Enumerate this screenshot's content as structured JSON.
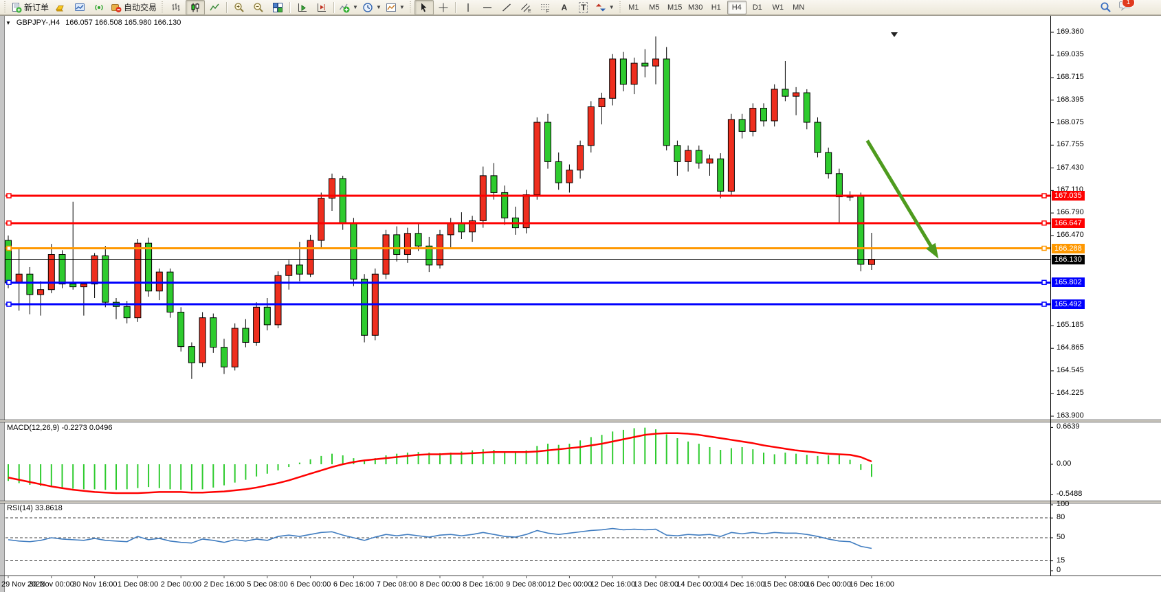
{
  "toolbar": {
    "new_order_label": "新订单",
    "autotrade_label": "自动交易",
    "timeframes": [
      "M1",
      "M5",
      "M15",
      "M30",
      "H1",
      "H4",
      "D1",
      "W1",
      "MN"
    ],
    "active_timeframe": "H4",
    "notification_count": "1",
    "glyphs": {
      "text": "A",
      "text_label": "T",
      "channel_sub": "E",
      "fibo_sub": "F"
    }
  },
  "chart": {
    "title_symbol": "GBPJPY-,H4",
    "title_ohlc": "166.057 166.508 165.980 166.130",
    "price_axis": [
      {
        "label": "169.360",
        "value": 169.36
      },
      {
        "label": "169.035",
        "value": 169.035
      },
      {
        "label": "168.715",
        "value": 168.715
      },
      {
        "label": "168.395",
        "value": 168.395
      },
      {
        "label": "168.075",
        "value": 168.075
      },
      {
        "label": "167.755",
        "value": 167.755
      },
      {
        "label": "167.430",
        "value": 167.43
      },
      {
        "label": "167.110",
        "value": 167.11
      },
      {
        "label": "166.790",
        "value": 166.79
      },
      {
        "label": "166.470",
        "value": 166.47
      },
      {
        "label": "165.185",
        "value": 165.185
      },
      {
        "label": "164.865",
        "value": 164.865
      },
      {
        "label": "164.545",
        "value": 164.545
      },
      {
        "label": "164.225",
        "value": 164.225
      },
      {
        "label": "163.900",
        "value": 163.9
      }
    ]
  },
  "macd": {
    "label": "MACD(12,26,9) -0.2273 0.0496",
    "axis": [
      {
        "label": "0.6639",
        "value": 0.6639
      },
      {
        "label": "0.00",
        "value": 0.0
      },
      {
        "label": "-0.5488",
        "value": -0.5488
      }
    ]
  },
  "rsi": {
    "label": "RSI(14) 33.8618",
    "axis": [
      {
        "label": "100",
        "value": 100
      },
      {
        "label": "80",
        "value": 80
      },
      {
        "label": "50",
        "value": 50
      },
      {
        "label": "15",
        "value": 15
      },
      {
        "label": "0",
        "value": 0
      }
    ]
  },
  "chart_data": {
    "type": "candlestick",
    "symbol": "GBPJPY-",
    "timeframe": "H4",
    "last_ohlc": {
      "open": 166.057,
      "high": 166.508,
      "low": 165.98,
      "close": 166.13
    },
    "price_range": [
      163.9,
      169.36
    ],
    "up_color": "#ee2e1e",
    "down_color": "#2ecb2e",
    "candles": [
      [
        166.4,
        166.47,
        165.72,
        165.8
      ],
      [
        165.8,
        166.28,
        165.4,
        165.92
      ],
      [
        165.92,
        166.02,
        165.35,
        165.63
      ],
      [
        165.63,
        165.82,
        165.33,
        165.7
      ],
      [
        165.7,
        166.35,
        165.65,
        166.2
      ],
      [
        166.2,
        166.26,
        165.72,
        165.78
      ],
      [
        165.78,
        166.95,
        165.7,
        165.74
      ],
      [
        165.74,
        165.8,
        165.33,
        165.78
      ],
      [
        165.78,
        166.22,
        165.58,
        166.18
      ],
      [
        166.18,
        166.32,
        165.45,
        165.52
      ],
      [
        165.52,
        165.58,
        165.28,
        165.46
      ],
      [
        165.46,
        165.54,
        165.22,
        165.3
      ],
      [
        165.3,
        166.42,
        165.24,
        166.36
      ],
      [
        166.36,
        166.44,
        165.6,
        165.68
      ],
      [
        165.68,
        166.0,
        165.55,
        165.95
      ],
      [
        165.95,
        166.0,
        165.3,
        165.38
      ],
      [
        165.38,
        165.45,
        164.82,
        164.89
      ],
      [
        164.89,
        164.95,
        164.43,
        164.66
      ],
      [
        164.66,
        165.38,
        164.6,
        165.3
      ],
      [
        165.3,
        165.36,
        164.8,
        164.88
      ],
      [
        164.88,
        165.0,
        164.5,
        164.6
      ],
      [
        164.6,
        165.22,
        164.55,
        165.15
      ],
      [
        165.15,
        165.28,
        164.88,
        164.95
      ],
      [
        164.95,
        165.52,
        164.9,
        165.45
      ],
      [
        165.45,
        165.58,
        165.12,
        165.2
      ],
      [
        165.2,
        165.96,
        165.15,
        165.9
      ],
      [
        165.9,
        166.12,
        165.7,
        166.05
      ],
      [
        166.05,
        166.38,
        165.82,
        165.92
      ],
      [
        165.92,
        166.48,
        165.88,
        166.4
      ],
      [
        166.4,
        167.08,
        166.3,
        167.0
      ],
      [
        167.0,
        167.35,
        166.82,
        167.28
      ],
      [
        167.28,
        167.32,
        166.55,
        166.65
      ],
      [
        166.65,
        166.72,
        165.75,
        165.85
      ],
      [
        165.85,
        165.92,
        164.95,
        165.05
      ],
      [
        165.05,
        166.0,
        164.98,
        165.92
      ],
      [
        165.92,
        166.55,
        165.85,
        166.48
      ],
      [
        166.48,
        166.6,
        166.1,
        166.2
      ],
      [
        166.2,
        166.58,
        166.08,
        166.5
      ],
      [
        166.5,
        166.65,
        166.25,
        166.32
      ],
      [
        166.32,
        166.45,
        165.95,
        166.05
      ],
      [
        166.05,
        166.55,
        166.0,
        166.48
      ],
      [
        166.48,
        166.72,
        166.3,
        166.65
      ],
      [
        166.65,
        166.8,
        166.42,
        166.52
      ],
      [
        166.52,
        166.75,
        166.38,
        166.68
      ],
      [
        166.68,
        167.45,
        166.58,
        167.32
      ],
      [
        167.32,
        167.5,
        166.98,
        167.08
      ],
      [
        167.08,
        167.18,
        166.62,
        166.72
      ],
      [
        166.72,
        166.88,
        166.48,
        166.58
      ],
      [
        166.58,
        167.12,
        166.5,
        167.05
      ],
      [
        167.05,
        168.15,
        166.98,
        168.08
      ],
      [
        168.08,
        168.2,
        167.42,
        167.52
      ],
      [
        167.52,
        167.65,
        167.12,
        167.22
      ],
      [
        167.22,
        167.48,
        167.08,
        167.4
      ],
      [
        167.4,
        167.82,
        167.28,
        167.75
      ],
      [
        167.75,
        168.38,
        167.65,
        168.3
      ],
      [
        168.3,
        168.5,
        168.05,
        168.42
      ],
      [
        168.42,
        169.05,
        168.32,
        168.98
      ],
      [
        168.98,
        169.08,
        168.52,
        168.62
      ],
      [
        168.62,
        169.0,
        168.48,
        168.92
      ],
      [
        168.92,
        169.12,
        168.72,
        168.88
      ],
      [
        168.88,
        169.3,
        168.62,
        168.98
      ],
      [
        168.98,
        169.15,
        167.68,
        167.75
      ],
      [
        167.75,
        167.82,
        167.32,
        167.52
      ],
      [
        167.52,
        167.75,
        167.38,
        167.68
      ],
      [
        167.68,
        167.75,
        167.42,
        167.5
      ],
      [
        167.5,
        167.62,
        167.32,
        167.56
      ],
      [
        167.56,
        167.64,
        167.0,
        167.1
      ],
      [
        167.1,
        168.2,
        167.02,
        168.12
      ],
      [
        168.12,
        168.2,
        167.85,
        167.95
      ],
      [
        167.95,
        168.35,
        167.88,
        168.28
      ],
      [
        168.28,
        168.35,
        168.02,
        168.1
      ],
      [
        168.1,
        168.62,
        168.02,
        168.55
      ],
      [
        168.55,
        168.95,
        168.38,
        168.45
      ],
      [
        168.45,
        168.58,
        168.18,
        168.5
      ],
      [
        168.5,
        168.55,
        167.98,
        168.08
      ],
      [
        168.08,
        168.15,
        167.58,
        167.65
      ],
      [
        167.65,
        167.72,
        167.28,
        167.35
      ],
      [
        167.35,
        167.42,
        166.65,
        167.02
      ],
      [
        167.02,
        167.1,
        166.96,
        167.03
      ],
      [
        167.03,
        167.08,
        165.96,
        166.06
      ],
      [
        166.057,
        166.508,
        165.98,
        166.13
      ]
    ],
    "hlines": [
      {
        "price": 167.035,
        "label": "167.035",
        "color": "#fe0000",
        "width": 3
      },
      {
        "price": 166.647,
        "label": "166.647",
        "color": "#fe0000",
        "width": 3
      },
      {
        "price": 166.288,
        "label": "166.288",
        "color": "#ff9800",
        "width": 3
      },
      {
        "price": 166.13,
        "label": "166.130",
        "color": "#000000",
        "width": 1
      },
      {
        "price": 165.802,
        "label": "165.802",
        "color": "#0000fe",
        "width": 3
      },
      {
        "price": 165.492,
        "label": "165.492",
        "color": "#0000fe",
        "width": 3
      }
    ],
    "time_labels": [
      {
        "i": 0,
        "t": "29 Nov 2022"
      },
      {
        "i": 4,
        "t": "30 Nov 00:00"
      },
      {
        "i": 8,
        "t": "30 Nov 16:00"
      },
      {
        "i": 12,
        "t": "1 Dec 08:00"
      },
      {
        "i": 16,
        "t": "2 Dec 00:00"
      },
      {
        "i": 20,
        "t": "2 Dec 16:00"
      },
      {
        "i": 24,
        "t": "5 Dec 08:00"
      },
      {
        "i": 28,
        "t": "6 Dec 00:00"
      },
      {
        "i": 32,
        "t": "6 Dec 16:00"
      },
      {
        "i": 36,
        "t": "7 Dec 08:00"
      },
      {
        "i": 40,
        "t": "8 Dec 00:00"
      },
      {
        "i": 44,
        "t": "8 Dec 16:00"
      },
      {
        "i": 48,
        "t": "9 Dec 08:00"
      },
      {
        "i": 52,
        "t": "12 Dec 00:00"
      },
      {
        "i": 56,
        "t": "12 Dec 16:00"
      },
      {
        "i": 60,
        "t": "13 Dec 08:00"
      },
      {
        "i": 64,
        "t": "14 Dec 00:00"
      },
      {
        "i": 68,
        "t": "14 Dec 16:00"
      },
      {
        "i": 72,
        "t": "15 Dec 08:00"
      },
      {
        "i": 76,
        "t": "16 Dec 00:00"
      },
      {
        "i": 80,
        "t": "16 Dec 16:00"
      }
    ],
    "macd": {
      "range": [
        -0.5488,
        0.6639
      ],
      "histogram_color": "#2ecb2e",
      "signal_color": "#fe0000",
      "histogram": [
        -0.3,
        -0.34,
        -0.37,
        -0.39,
        -0.41,
        -0.43,
        -0.44,
        -0.45,
        -0.45,
        -0.46,
        -0.46,
        -0.45,
        -0.43,
        -0.41,
        -0.43,
        -0.45,
        -0.46,
        -0.47,
        -0.45,
        -0.42,
        -0.38,
        -0.33,
        -0.28,
        -0.22,
        -0.17,
        -0.11,
        -0.05,
        0.03,
        0.09,
        0.15,
        0.19,
        0.16,
        0.11,
        0.07,
        0.11,
        0.16,
        0.19,
        0.21,
        0.22,
        0.21,
        0.2,
        0.21,
        0.23,
        0.25,
        0.27,
        0.26,
        0.23,
        0.21,
        0.25,
        0.33,
        0.37,
        0.35,
        0.37,
        0.43,
        0.49,
        0.53,
        0.59,
        0.62,
        0.65,
        0.66,
        0.63,
        0.54,
        0.47,
        0.41,
        0.37,
        0.31,
        0.26,
        0.29,
        0.31,
        0.27,
        0.21,
        0.18,
        0.21,
        0.19,
        0.17,
        0.15,
        0.16,
        0.17,
        0.08,
        -0.1,
        -0.2273
      ],
      "signal": [
        -0.24,
        -0.28,
        -0.32,
        -0.36,
        -0.4,
        -0.43,
        -0.46,
        -0.48,
        -0.5,
        -0.51,
        -0.52,
        -0.52,
        -0.52,
        -0.51,
        -0.5,
        -0.5,
        -0.5,
        -0.51,
        -0.51,
        -0.5,
        -0.49,
        -0.47,
        -0.45,
        -0.42,
        -0.38,
        -0.34,
        -0.29,
        -0.23,
        -0.17,
        -0.11,
        -0.05,
        0.0,
        0.04,
        0.07,
        0.09,
        0.11,
        0.13,
        0.15,
        0.17,
        0.18,
        0.18,
        0.19,
        0.19,
        0.2,
        0.21,
        0.22,
        0.22,
        0.22,
        0.22,
        0.23,
        0.25,
        0.27,
        0.29,
        0.31,
        0.34,
        0.37,
        0.41,
        0.45,
        0.49,
        0.53,
        0.55,
        0.56,
        0.56,
        0.55,
        0.53,
        0.5,
        0.47,
        0.44,
        0.41,
        0.38,
        0.34,
        0.31,
        0.28,
        0.25,
        0.23,
        0.21,
        0.19,
        0.18,
        0.17,
        0.13,
        0.0496
      ]
    },
    "rsi": {
      "range": [
        0,
        100
      ],
      "levels": [
        80,
        50,
        15
      ],
      "line_color": "#3f7cc0",
      "values": [
        47,
        45,
        44,
        46,
        50,
        48,
        47,
        46,
        49,
        46,
        45,
        44,
        52,
        47,
        49,
        45,
        43,
        42,
        48,
        46,
        43,
        47,
        45,
        48,
        46,
        52,
        54,
        52,
        55,
        58,
        59,
        54,
        50,
        46,
        51,
        55,
        53,
        55,
        53,
        51,
        54,
        55,
        53,
        55,
        58,
        55,
        52,
        51,
        55,
        61,
        57,
        55,
        57,
        59,
        61,
        62,
        64,
        62,
        63,
        62,
        63,
        54,
        53,
        55,
        54,
        55,
        52,
        58,
        56,
        58,
        56,
        58,
        57,
        57,
        55,
        52,
        48,
        45,
        44,
        37,
        33.86
      ]
    },
    "arrow": {
      "from_i": 79.6,
      "from_price": 167.82,
      "to_i": 86.2,
      "to_price": 166.14,
      "color": "#4e9b1e"
    }
  }
}
